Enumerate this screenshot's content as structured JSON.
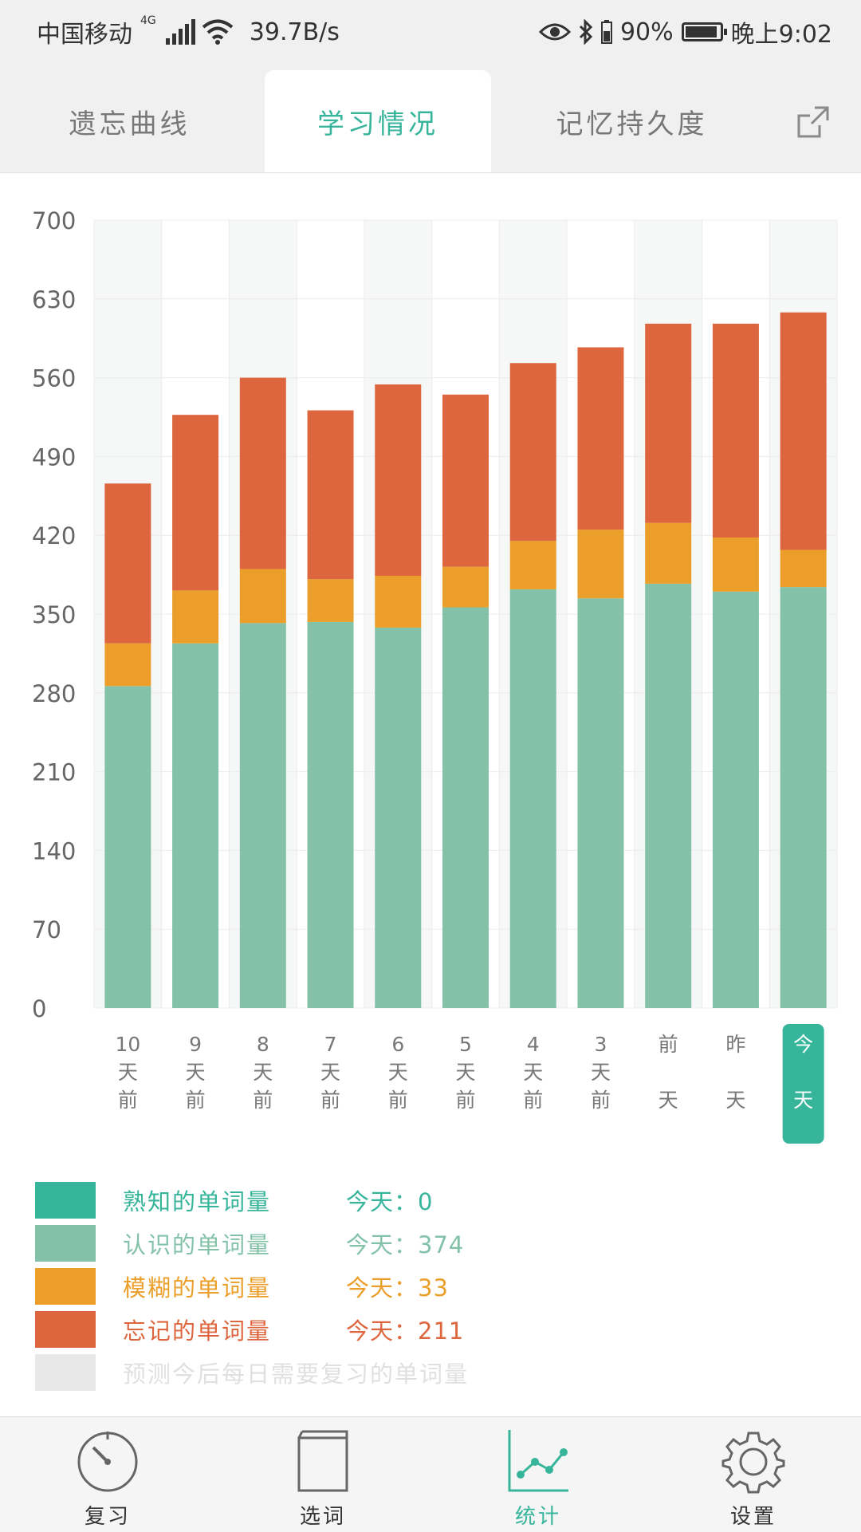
{
  "status_bar": {
    "carrier": "中国移动",
    "network": "4G",
    "speed": "39.7B/s",
    "battery_percent": "90%",
    "battery_level": 0.9,
    "time": "晚上9:02"
  },
  "tabs": [
    {
      "label": "遗忘曲线"
    },
    {
      "label": "学习情况"
    },
    {
      "label": "记忆持久度"
    }
  ],
  "active_tab": 1,
  "chart_data": {
    "type": "bar",
    "stacked": true,
    "ylim": [
      0,
      700
    ],
    "yticks": [
      "0",
      "70",
      "140",
      "210",
      "280",
      "350",
      "420",
      "490",
      "560",
      "630",
      "700"
    ],
    "categories": [
      "10天前",
      "9天前",
      "8天前",
      "7天前",
      "6天前",
      "5天前",
      "4天前",
      "3天前",
      "前天",
      "昨天",
      "今天"
    ],
    "highlight_index": 10,
    "series": [
      {
        "name": "熟知的单词量",
        "color": "#37b59b",
        "values": [
          0,
          0,
          0,
          0,
          0,
          0,
          0,
          0,
          0,
          0,
          0
        ]
      },
      {
        "name": "认识的单词量",
        "color": "#83c2a9",
        "values": [
          286,
          324,
          342,
          343,
          338,
          356,
          372,
          364,
          377,
          370,
          374
        ]
      },
      {
        "name": "模糊的单词量",
        "color": "#eb9f2a",
        "values": [
          38,
          47,
          48,
          38,
          46,
          36,
          43,
          61,
          54,
          48,
          33
        ]
      },
      {
        "name": "忘记的单词量",
        "color": "#dd663e",
        "values": [
          142,
          156,
          170,
          150,
          170,
          153,
          158,
          162,
          177,
          190,
          211
        ]
      }
    ]
  },
  "legend": [
    {
      "label": "熟知的单词量",
      "today": "今天：0",
      "color": "#37b59b"
    },
    {
      "label": "认识的单词量",
      "today": "今天：374",
      "color": "#83c2a9"
    },
    {
      "label": "模糊的单词量",
      "today": "今天：33",
      "color": "#eb9f2a"
    },
    {
      "label": "忘记的单词量",
      "today": "今天：211",
      "color": "#dd663e"
    },
    {
      "label": "预测今后每日需要复习的单词量",
      "today": "",
      "color": "#e8e8e8"
    }
  ],
  "bottom_nav": [
    {
      "label": "复习"
    },
    {
      "label": "选词"
    },
    {
      "label": "统计"
    },
    {
      "label": "设置"
    }
  ],
  "active_nav": 2
}
